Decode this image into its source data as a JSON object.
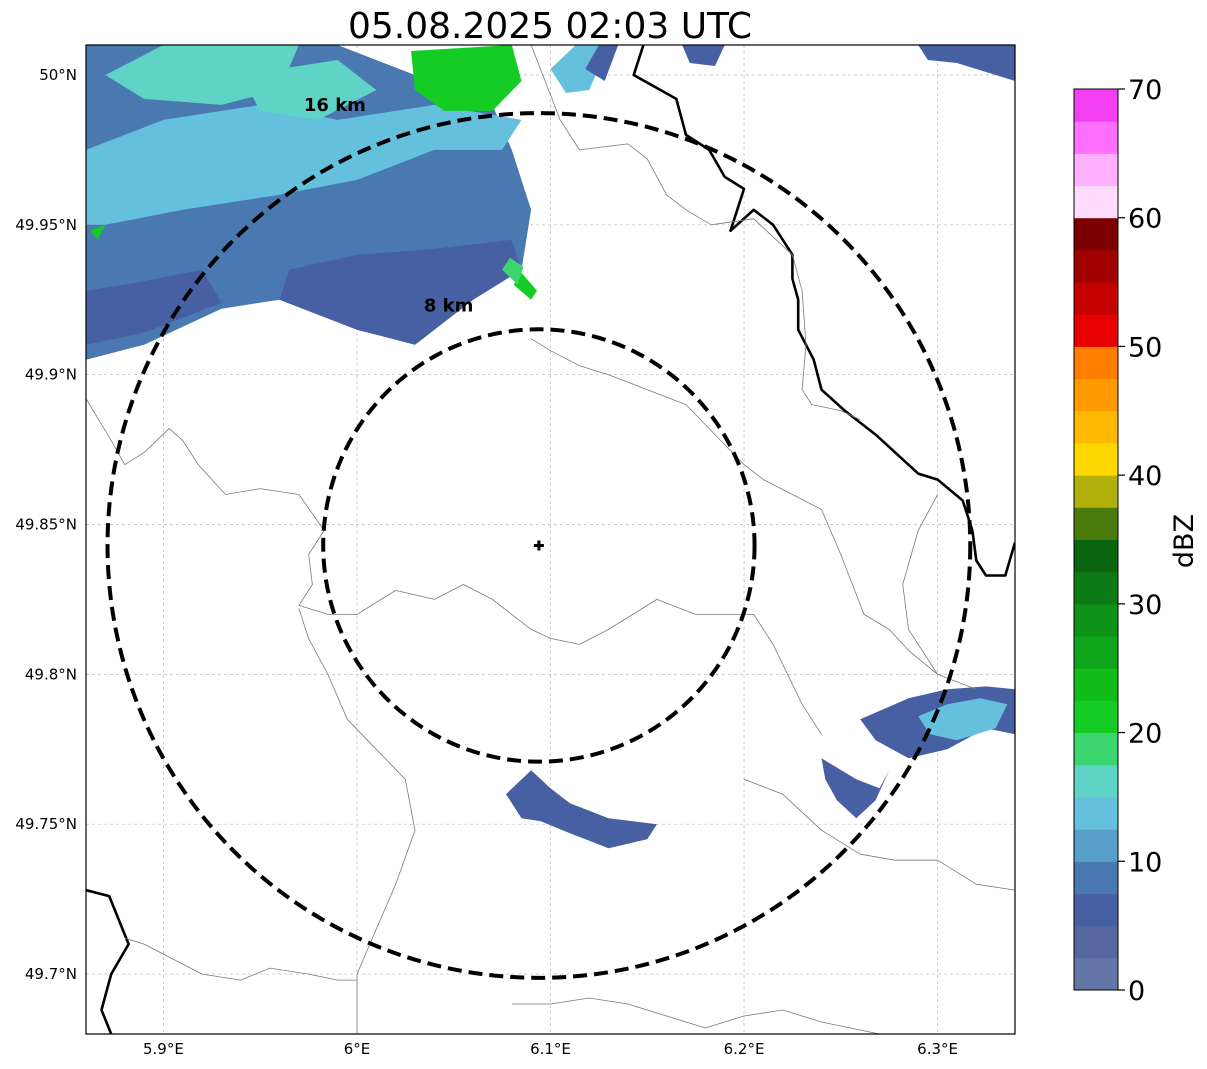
{
  "title": "05.08.2025 02:03 UTC",
  "map": {
    "extent": {
      "lon_min": 5.86,
      "lon_max": 6.34,
      "lat_min": 49.68,
      "lat_max": 50.01
    },
    "lon_ticks": [
      {
        "value": 5.9,
        "label": "5.9°E"
      },
      {
        "value": 6.0,
        "label": "6°E"
      },
      {
        "value": 6.1,
        "label": "6.1°E"
      },
      {
        "value": 6.2,
        "label": "6.2°E"
      },
      {
        "value": 6.3,
        "label": "6.3°E"
      }
    ],
    "lat_ticks": [
      {
        "value": 50.0,
        "label": "50°N"
      },
      {
        "value": 49.95,
        "label": "49.95°N"
      },
      {
        "value": 49.9,
        "label": "49.9°N"
      },
      {
        "value": 49.85,
        "label": "49.85°N"
      },
      {
        "value": 49.8,
        "label": "49.8°N"
      },
      {
        "value": 49.75,
        "label": "49.75°N"
      },
      {
        "value": 49.7,
        "label": "49.7°N"
      }
    ],
    "gridlines": true,
    "radar_center": {
      "lon": 6.094,
      "lat": 49.843
    },
    "range_rings": [
      {
        "radius_km": 8,
        "label": "8 km"
      },
      {
        "radius_km": 16,
        "label": "16 km"
      }
    ],
    "ring_colour": "#000000"
  },
  "colorbar": {
    "label": "dBZ",
    "min": 0,
    "max": 70,
    "step": 2.5,
    "tick_labels": [
      "0",
      "10",
      "20",
      "30",
      "40",
      "50",
      "60",
      "70"
    ],
    "colors": [
      "#6475a7",
      "#5667a0",
      "#4660a3",
      "#4a79b1",
      "#589fc9",
      "#64c0dc",
      "#5fd3c6",
      "#3cd671",
      "#14cc24",
      "#12bd19",
      "#0ea51a",
      "#0e9218",
      "#0c7b16",
      "#0a6510",
      "#4a7b0b",
      "#b1b00b",
      "#ffd800",
      "#ffb900",
      "#ff9a00",
      "#ff7e00",
      "#e60000",
      "#c40000",
      "#a10000",
      "#7d0000",
      "#ffdcff",
      "#ffb0ff",
      "#ff70ff",
      "#f23ff2"
    ]
  },
  "echoes": [
    {
      "dbz": 8,
      "poly": [
        [
          5.86,
          49.905
        ],
        [
          5.89,
          49.91
        ],
        [
          5.93,
          49.922
        ],
        [
          5.96,
          49.925
        ],
        [
          6.0,
          49.915
        ],
        [
          6.03,
          49.91
        ],
        [
          6.06,
          49.925
        ],
        [
          6.085,
          49.935
        ],
        [
          6.09,
          49.955
        ],
        [
          6.08,
          49.975
        ],
        [
          6.07,
          49.99
        ],
        [
          6.03,
          50.0
        ],
        [
          5.99,
          50.01
        ],
        [
          5.86,
          50.01
        ]
      ]
    },
    {
      "dbz": 5,
      "poly": [
        [
          5.96,
          49.925
        ],
        [
          6.0,
          49.915
        ],
        [
          6.03,
          49.91
        ],
        [
          6.06,
          49.925
        ],
        [
          6.085,
          49.935
        ],
        [
          6.08,
          49.945
        ],
        [
          6.04,
          49.942
        ],
        [
          6.0,
          49.94
        ],
        [
          5.965,
          49.935
        ]
      ]
    },
    {
      "dbz": 5,
      "poly": [
        [
          5.86,
          49.91
        ],
        [
          5.89,
          49.914
        ],
        [
          5.93,
          49.924
        ],
        [
          5.92,
          49.935
        ],
        [
          5.88,
          49.93
        ],
        [
          5.86,
          49.928
        ]
      ]
    },
    {
      "dbz": 13,
      "poly": [
        [
          5.86,
          49.975
        ],
        [
          5.9,
          49.985
        ],
        [
          5.95,
          49.99
        ],
        [
          5.99,
          49.985
        ],
        [
          6.04,
          49.99
        ],
        [
          6.085,
          49.985
        ],
        [
          6.075,
          49.975
        ],
        [
          6.04,
          49.975
        ],
        [
          6.0,
          49.965
        ],
        [
          5.96,
          49.96
        ],
        [
          5.91,
          49.955
        ],
        [
          5.87,
          49.95
        ],
        [
          5.86,
          49.95
        ]
      ]
    },
    {
      "dbz": 15,
      "poly": [
        [
          5.87,
          50.0
        ],
        [
          5.9,
          50.01
        ],
        [
          5.97,
          50.01
        ],
        [
          5.96,
          49.995
        ],
        [
          5.93,
          49.99
        ],
        [
          5.89,
          49.992
        ]
      ]
    },
    {
      "dbz": 16,
      "poly": [
        [
          5.94,
          50.0
        ],
        [
          5.99,
          50.005
        ],
        [
          6.01,
          49.995
        ],
        [
          5.98,
          49.985
        ],
        [
          5.95,
          49.988
        ]
      ]
    },
    {
      "dbz": 22,
      "poly": [
        [
          6.028,
          50.008
        ],
        [
          6.08,
          50.01
        ],
        [
          6.085,
          49.998
        ],
        [
          6.07,
          49.988
        ],
        [
          6.045,
          49.988
        ],
        [
          6.03,
          49.995
        ]
      ]
    },
    {
      "dbz": 20,
      "poly": [
        [
          5.862,
          49.948
        ],
        [
          5.87,
          49.95
        ],
        [
          5.866,
          49.945
        ]
      ]
    },
    {
      "dbz": 21,
      "poly": [
        [
          6.081,
          49.93
        ],
        [
          6.09,
          49.925
        ],
        [
          6.093,
          49.928
        ],
        [
          6.085,
          49.934
        ]
      ]
    },
    {
      "dbz": 18,
      "poly": [
        [
          6.075,
          49.935
        ],
        [
          6.083,
          49.93
        ],
        [
          6.086,
          49.936
        ],
        [
          6.079,
          49.939
        ]
      ]
    },
    {
      "dbz": 13,
      "poly": [
        [
          6.1,
          50.002
        ],
        [
          6.113,
          50.01
        ],
        [
          6.13,
          50.01
        ],
        [
          6.12,
          49.995
        ],
        [
          6.108,
          49.994
        ]
      ]
    },
    {
      "dbz": 6,
      "poly": [
        [
          6.118,
          50.002
        ],
        [
          6.125,
          50.01
        ],
        [
          6.135,
          50.01
        ],
        [
          6.128,
          49.998
        ]
      ]
    },
    {
      "dbz": 5,
      "poly": [
        [
          6.168,
          50.01
        ],
        [
          6.19,
          50.01
        ],
        [
          6.185,
          50.003
        ],
        [
          6.172,
          50.004
        ]
      ]
    },
    {
      "dbz": 5,
      "poly": [
        [
          6.29,
          50.01
        ],
        [
          6.34,
          50.01
        ],
        [
          6.34,
          49.998
        ],
        [
          6.31,
          50.004
        ],
        [
          6.295,
          50.005
        ]
      ]
    },
    {
      "dbz": 6,
      "poly": [
        [
          6.077,
          49.76
        ],
        [
          6.09,
          49.768
        ],
        [
          6.1,
          49.762
        ],
        [
          6.11,
          49.757
        ],
        [
          6.13,
          49.752
        ],
        [
          6.155,
          49.75
        ],
        [
          6.15,
          49.745
        ],
        [
          6.13,
          49.742
        ],
        [
          6.11,
          49.747
        ],
        [
          6.095,
          49.751
        ],
        [
          6.085,
          49.752
        ]
      ]
    },
    {
      "dbz": 6,
      "poly": [
        [
          6.24,
          49.772
        ],
        [
          6.258,
          49.765
        ],
        [
          6.27,
          49.762
        ],
        [
          6.275,
          49.768
        ],
        [
          6.268,
          49.758
        ],
        [
          6.258,
          49.752
        ],
        [
          6.248,
          49.758
        ],
        [
          6.242,
          49.765
        ]
      ]
    },
    {
      "dbz": 6,
      "poly": [
        [
          6.26,
          49.785
        ],
        [
          6.285,
          49.792
        ],
        [
          6.305,
          49.795
        ],
        [
          6.325,
          49.796
        ],
        [
          6.34,
          49.795
        ],
        [
          6.34,
          49.78
        ],
        [
          6.325,
          49.782
        ],
        [
          6.305,
          49.775
        ],
        [
          6.285,
          49.772
        ],
        [
          6.268,
          49.778
        ]
      ]
    },
    {
      "dbz": 13,
      "poly": [
        [
          6.29,
          49.786
        ],
        [
          6.305,
          49.79
        ],
        [
          6.322,
          49.792
        ],
        [
          6.336,
          49.79
        ],
        [
          6.33,
          49.782
        ],
        [
          6.31,
          49.778
        ],
        [
          6.296,
          49.78
        ]
      ]
    }
  ],
  "boundaries": {
    "major": [
      [
        [
          6.148,
          50.01
        ],
        [
          6.143,
          50.0
        ],
        [
          6.165,
          49.992
        ],
        [
          6.17,
          49.98
        ],
        [
          6.182,
          49.975
        ],
        [
          6.19,
          49.966
        ],
        [
          6.2,
          49.962
        ],
        [
          6.193,
          49.948
        ],
        [
          6.205,
          49.955
        ],
        [
          6.215,
          49.95
        ],
        [
          6.225,
          49.94
        ],
        [
          6.225,
          49.932
        ],
        [
          6.228,
          49.925
        ],
        [
          6.228,
          49.915
        ],
        [
          6.236,
          49.905
        ],
        [
          6.24,
          49.895
        ],
        [
          6.252,
          49.888
        ],
        [
          6.268,
          49.88
        ],
        [
          6.29,
          49.867
        ],
        [
          6.3,
          49.865
        ],
        [
          6.313,
          49.858
        ],
        [
          6.318,
          49.848
        ],
        [
          6.32,
          49.838
        ],
        [
          6.325,
          49.833
        ],
        [
          6.335,
          49.833
        ],
        [
          6.34,
          49.844
        ]
      ],
      [
        [
          5.86,
          49.728
        ],
        [
          5.872,
          49.726
        ],
        [
          5.882,
          49.71
        ],
        [
          5.873,
          49.7
        ],
        [
          5.868,
          49.688
        ],
        [
          5.873,
          49.68
        ]
      ]
    ],
    "minor": [
      [
        [
          5.86,
          49.892
        ],
        [
          5.873,
          49.878
        ],
        [
          5.88,
          49.87
        ],
        [
          5.89,
          49.874
        ],
        [
          5.903,
          49.882
        ],
        [
          5.91,
          49.878
        ],
        [
          5.918,
          49.87
        ],
        [
          5.932,
          49.86
        ],
        [
          5.95,
          49.862
        ],
        [
          5.97,
          49.86
        ],
        [
          5.983,
          49.848
        ],
        [
          5.975,
          49.84
        ],
        [
          5.977,
          49.83
        ],
        [
          5.97,
          49.823
        ],
        [
          5.985,
          49.82
        ],
        [
          6.0,
          49.82
        ],
        [
          6.02,
          49.828
        ],
        [
          6.04,
          49.825
        ],
        [
          6.055,
          49.83
        ],
        [
          6.07,
          49.825
        ],
        [
          6.09,
          49.815
        ],
        [
          6.1,
          49.812
        ],
        [
          6.115,
          49.81
        ],
        [
          6.13,
          49.815
        ],
        [
          6.155,
          49.825
        ],
        [
          6.175,
          49.82
        ],
        [
          6.19,
          49.82
        ],
        [
          6.205,
          49.82
        ],
        [
          6.215,
          49.81
        ],
        [
          6.23,
          49.79
        ],
        [
          6.24,
          49.78
        ]
      ],
      [
        [
          6.09,
          50.01
        ],
        [
          6.105,
          49.985
        ],
        [
          6.115,
          49.975
        ],
        [
          6.14,
          49.977
        ],
        [
          6.15,
          49.972
        ],
        [
          6.16,
          49.96
        ],
        [
          6.17,
          49.955
        ],
        [
          6.183,
          49.95
        ],
        [
          6.205,
          49.952
        ],
        [
          6.225,
          49.94
        ],
        [
          6.23,
          49.928
        ],
        [
          6.232,
          49.91
        ],
        [
          6.23,
          49.895
        ],
        [
          6.235,
          49.89
        ],
        [
          6.25,
          49.888
        ],
        [
          6.26,
          49.885
        ]
      ],
      [
        [
          6.09,
          49.912
        ],
        [
          6.1,
          49.908
        ],
        [
          6.115,
          49.903
        ],
        [
          6.13,
          49.9
        ],
        [
          6.15,
          49.895
        ],
        [
          6.17,
          49.89
        ],
        [
          6.185,
          49.88
        ],
        [
          6.2,
          49.87
        ],
        [
          6.21,
          49.865
        ],
        [
          6.225,
          49.86
        ],
        [
          6.24,
          49.855
        ],
        [
          6.25,
          49.84
        ],
        [
          6.262,
          49.82
        ],
        [
          6.275,
          49.815
        ],
        [
          6.285,
          49.808
        ],
        [
          6.3,
          49.8
        ],
        [
          6.32,
          49.795
        ]
      ],
      [
        [
          6.0,
          49.68
        ],
        [
          6.0,
          49.7
        ],
        [
          6.01,
          49.715
        ],
        [
          6.02,
          49.73
        ],
        [
          6.03,
          49.748
        ],
        [
          6.025,
          49.765
        ],
        [
          6.01,
          49.775
        ],
        [
          5.995,
          49.785
        ],
        [
          5.985,
          49.8
        ],
        [
          5.975,
          49.812
        ],
        [
          5.97,
          49.822
        ]
      ],
      [
        [
          5.88,
          49.712
        ],
        [
          5.89,
          49.71
        ],
        [
          5.905,
          49.705
        ],
        [
          5.92,
          49.7
        ],
        [
          5.94,
          49.698
        ],
        [
          5.955,
          49.702
        ],
        [
          5.975,
          49.7
        ],
        [
          5.99,
          49.698
        ],
        [
          6.0,
          49.698
        ]
      ],
      [
        [
          6.2,
          49.765
        ],
        [
          6.22,
          49.76
        ],
        [
          6.24,
          49.748
        ],
        [
          6.26,
          49.74
        ],
        [
          6.278,
          49.738
        ],
        [
          6.3,
          49.738
        ],
        [
          6.32,
          49.73
        ],
        [
          6.34,
          49.728
        ]
      ],
      [
        [
          6.08,
          49.69
        ],
        [
          6.1,
          49.69
        ],
        [
          6.12,
          49.692
        ],
        [
          6.14,
          49.69
        ],
        [
          6.16,
          49.686
        ],
        [
          6.18,
          49.682
        ],
        [
          6.2,
          49.686
        ],
        [
          6.22,
          49.688
        ],
        [
          6.24,
          49.684
        ],
        [
          6.27,
          49.68
        ]
      ],
      [
        [
          6.3,
          49.86
        ],
        [
          6.29,
          49.848
        ],
        [
          6.282,
          49.83
        ],
        [
          6.285,
          49.815
        ],
        [
          6.3,
          49.8
        ]
      ]
    ]
  }
}
